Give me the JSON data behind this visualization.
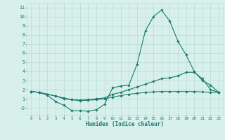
{
  "xlabel": "Humidex (Indice chaleur)",
  "bg_color": "#d8f0ec",
  "grid_color": "#c0ddd8",
  "line_color": "#1a7a6e",
  "xlim": [
    -0.5,
    23.5
  ],
  "ylim": [
    -0.75,
    11.5
  ],
  "xticks": [
    0,
    1,
    2,
    3,
    4,
    5,
    6,
    7,
    8,
    9,
    10,
    11,
    12,
    13,
    14,
    15,
    16,
    17,
    18,
    19,
    20,
    21,
    22,
    23
  ],
  "ytick_vals": [
    0,
    1,
    2,
    3,
    4,
    5,
    6,
    7,
    8,
    9,
    10,
    11
  ],
  "ytick_labels": [
    "-0",
    "1",
    "2",
    "3",
    "4",
    "5",
    "6",
    "7",
    "8",
    "9",
    "10",
    "11"
  ],
  "line1_x": [
    0,
    1,
    2,
    3,
    4,
    5,
    6,
    7,
    8,
    9,
    10,
    11,
    12,
    13,
    14,
    15,
    16,
    17,
    18,
    19,
    20,
    21,
    22,
    23
  ],
  "line1_y": [
    1.8,
    1.7,
    1.4,
    0.7,
    0.3,
    -0.3,
    -0.3,
    -0.35,
    -0.2,
    0.4,
    2.2,
    2.4,
    2.5,
    4.8,
    8.4,
    10.0,
    10.7,
    9.5,
    7.3,
    5.8,
    4.0,
    3.0,
    2.5,
    1.7
  ],
  "line2_x": [
    0,
    1,
    2,
    3,
    4,
    5,
    6,
    7,
    8,
    9,
    10,
    11,
    12,
    13,
    14,
    15,
    16,
    17,
    18,
    19,
    20,
    21,
    22,
    23
  ],
  "line2_y": [
    1.8,
    1.7,
    1.5,
    1.3,
    1.1,
    0.9,
    0.85,
    0.9,
    1.0,
    1.1,
    1.5,
    1.7,
    2.0,
    2.3,
    2.6,
    2.9,
    3.2,
    3.3,
    3.5,
    3.9,
    3.9,
    3.2,
    2.0,
    1.7
  ],
  "line3_x": [
    0,
    1,
    2,
    3,
    4,
    5,
    6,
    7,
    8,
    9,
    10,
    11,
    12,
    13,
    14,
    15,
    16,
    17,
    18,
    19,
    20,
    21,
    22,
    23
  ],
  "line3_y": [
    1.8,
    1.7,
    1.5,
    1.3,
    1.0,
    0.9,
    0.8,
    0.85,
    0.9,
    1.0,
    1.2,
    1.35,
    1.5,
    1.6,
    1.7,
    1.75,
    1.8,
    1.8,
    1.8,
    1.8,
    1.8,
    1.75,
    1.7,
    1.7
  ]
}
